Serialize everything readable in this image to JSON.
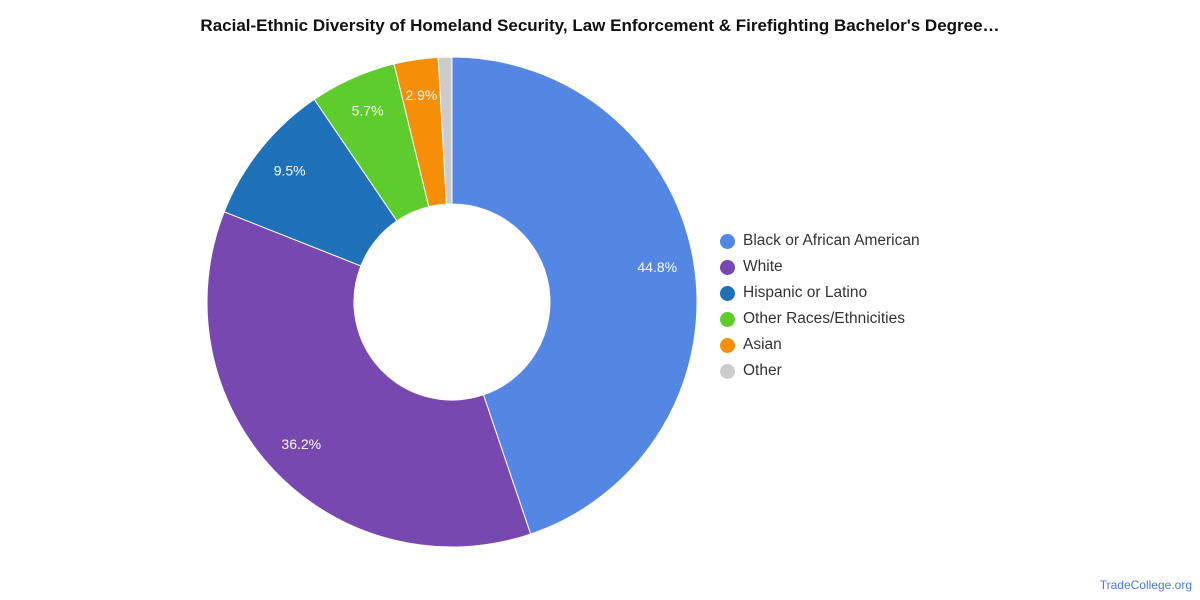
{
  "chart_data": {
    "type": "pie",
    "title": "Racial-Ethnic Diversity of Homeland Security, Law Enforcement & Firefighting Bachelor's Degree…",
    "categories": [
      "Black or African American",
      "White",
      "Hispanic or Latino",
      "Other Races/Ethnicities",
      "Asian",
      "Other"
    ],
    "values": [
      44.8,
      36.2,
      9.5,
      5.7,
      2.9,
      0.9
    ],
    "data_labels": [
      "44.8%",
      "36.2%",
      "9.5%",
      "5.7%",
      "2.9%",
      ""
    ],
    "colors": [
      "#5486e3",
      "#7648b0",
      "#1f72ba",
      "#5fcc2e",
      "#f78e07",
      "#cccccc"
    ],
    "donut": true,
    "legend_position": "right"
  },
  "source": "TradeCollege.org"
}
